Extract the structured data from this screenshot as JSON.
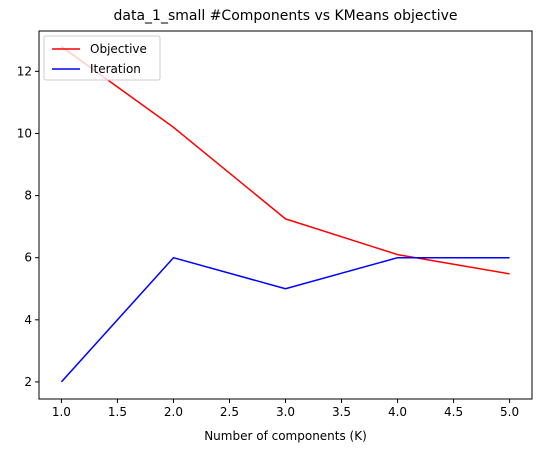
{
  "chart_data": {
    "type": "line",
    "title": "data_1_small #Components vs KMeans objective",
    "xlabel": "Number of components (K)",
    "ylabel": "",
    "x": [
      1,
      2,
      3,
      4,
      5
    ],
    "xlim": [
      0.8,
      5.2
    ],
    "ylim": [
      1.45,
      13.3
    ],
    "xticks": [
      1.0,
      1.5,
      2.0,
      2.5,
      3.0,
      3.5,
      4.0,
      4.5,
      5.0
    ],
    "xtick_labels": [
      "1.0",
      "1.5",
      "2.0",
      "2.5",
      "3.0",
      "3.5",
      "4.0",
      "4.5",
      "5.0"
    ],
    "yticks": [
      2,
      4,
      6,
      8,
      10,
      12
    ],
    "ytick_labels": [
      "2",
      "4",
      "6",
      "8",
      "10",
      "12"
    ],
    "grid": false,
    "legend": "top-left",
    "series": [
      {
        "name": "Objective",
        "color": "#ff0000",
        "values": [
          12.8,
          10.2,
          7.25,
          6.1,
          5.48
        ]
      },
      {
        "name": "Iteration",
        "color": "#0000ff",
        "values": [
          2,
          6,
          5,
          6,
          6
        ]
      }
    ]
  }
}
